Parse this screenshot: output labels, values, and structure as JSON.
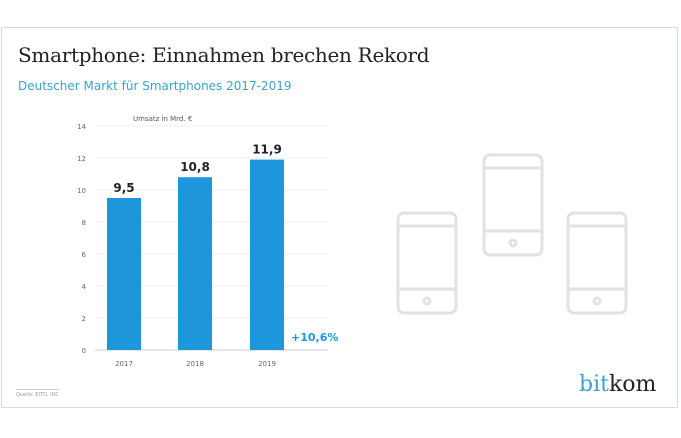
{
  "title": "Smartphone: Einnahmen brechen Rekord",
  "subtitle": "Deutscher Markt für Smartphones 2017-2019",
  "source": "Quelle: EITO, IDC",
  "logo": {
    "part1": "bit",
    "part2": "kom"
  },
  "chart_data": {
    "type": "bar",
    "title": "Smartphone: Einnahmen brechen Rekord",
    "ylabel": "Umsatz in Mrd. €",
    "categories": [
      "2017",
      "2018",
      "2019"
    ],
    "values": [
      9.5,
      10.8,
      11.9
    ],
    "value_labels": [
      "9,5",
      "10,8",
      "11,9"
    ],
    "ylim": [
      0,
      14
    ],
    "yticks": [
      0,
      2,
      4,
      6,
      8,
      10,
      12,
      14
    ],
    "annotation": "+10,6%",
    "bar_color": "#1e96dc",
    "grid": true
  }
}
